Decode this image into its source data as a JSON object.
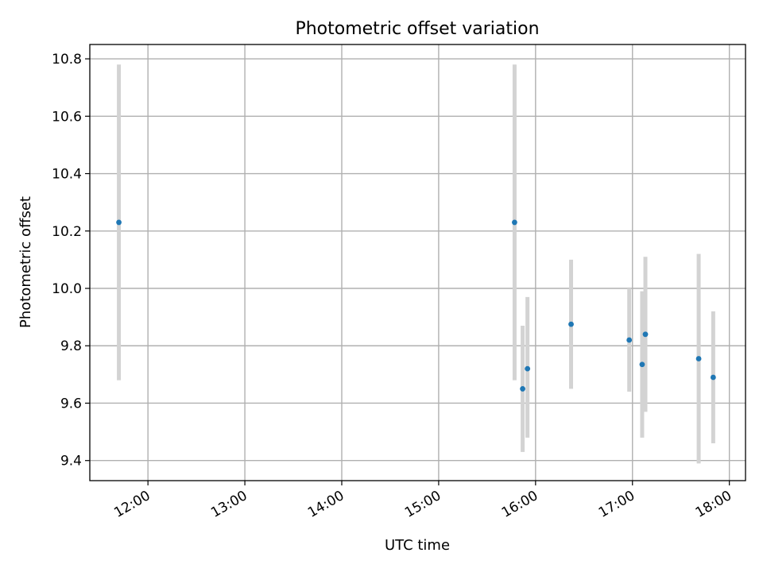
{
  "chart_data": {
    "type": "scatter",
    "title": "Photometric offset variation",
    "xlabel": "UTC time",
    "ylabel": "Photometric offset",
    "grid": true,
    "x_ticks": [
      "12:00",
      "13:00",
      "14:00",
      "15:00",
      "16:00",
      "17:00",
      "18:00"
    ],
    "y_ticks": [
      "9.4",
      "9.6",
      "9.8",
      "10.0",
      "10.2",
      "10.4",
      "10.6",
      "10.8"
    ],
    "xlim": [
      "11:24",
      "18:10"
    ],
    "ylim": [
      9.33,
      10.85
    ],
    "colors": {
      "marker": "#1f77b4",
      "errorbar": "#d3d3d3"
    },
    "points": [
      {
        "x": "11:42",
        "y": 10.23,
        "ylow": 9.68,
        "yhigh": 10.78
      },
      {
        "x": "15:47",
        "y": 10.23,
        "ylow": 9.68,
        "yhigh": 10.78
      },
      {
        "x": "15:52",
        "y": 9.65,
        "ylow": 9.43,
        "yhigh": 9.87
      },
      {
        "x": "15:55",
        "y": 9.72,
        "ylow": 9.48,
        "yhigh": 9.97
      },
      {
        "x": "16:22",
        "y": 9.875,
        "ylow": 9.65,
        "yhigh": 10.1
      },
      {
        "x": "16:58",
        "y": 9.82,
        "ylow": 9.64,
        "yhigh": 10.0
      },
      {
        "x": "17:06",
        "y": 9.735,
        "ylow": 9.48,
        "yhigh": 9.99
      },
      {
        "x": "17:08",
        "y": 9.84,
        "ylow": 9.57,
        "yhigh": 10.11
      },
      {
        "x": "17:41",
        "y": 9.755,
        "ylow": 9.39,
        "yhigh": 10.12
      },
      {
        "x": "17:50",
        "y": 9.69,
        "ylow": 9.46,
        "yhigh": 9.92
      }
    ]
  }
}
